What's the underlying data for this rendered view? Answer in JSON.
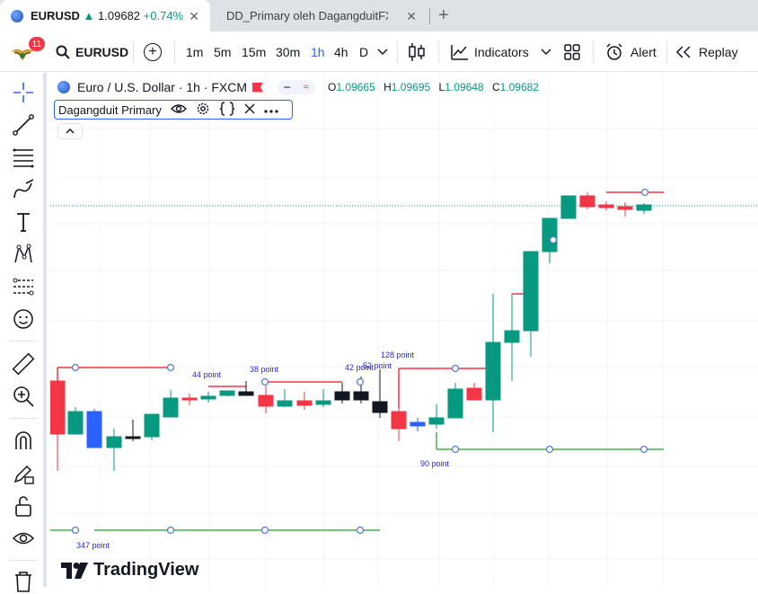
{
  "browser": {
    "tabs": [
      {
        "symbol": "EURUSD",
        "arrow": "▲",
        "price": "1.09682",
        "change": "+0.74%"
      },
      {
        "title": "DD_Primary oleh DagangduitFX"
      }
    ],
    "close_glyph": "✕",
    "new_tab_glyph": "+"
  },
  "toolbar": {
    "badge": "11",
    "symbol": "EURUSD",
    "add_glyph": "+",
    "timeframes": [
      "1m",
      "5m",
      "15m",
      "30m",
      "1h",
      "4h",
      "D"
    ],
    "active_timeframe": "1h",
    "indicators": "Indicators",
    "alert": "Alert",
    "replay": "Replay"
  },
  "chart": {
    "symbol_title": "Euro / U.S. Dollar · 1h · FXCM",
    "ohlc": {
      "o_label": "O",
      "o": "1.09665",
      "h_label": "H",
      "h": "1.09695",
      "l_label": "L",
      "l": "1.09648",
      "c_label": "C",
      "c": "1.09682"
    },
    "indicator_name": "Dagangduit Primary",
    "watermark": "TradingView",
    "colors": {
      "up": "#089981",
      "down": "#f23645",
      "resistance": "#f23645",
      "support": "#4caf50",
      "label": "#2e2ec7"
    }
  },
  "chart_data": {
    "type": "candlestick",
    "annotations": [
      "44 point",
      "38 point",
      "42 point",
      "52 point",
      "128 point",
      "90 point",
      "347 point"
    ]
  }
}
